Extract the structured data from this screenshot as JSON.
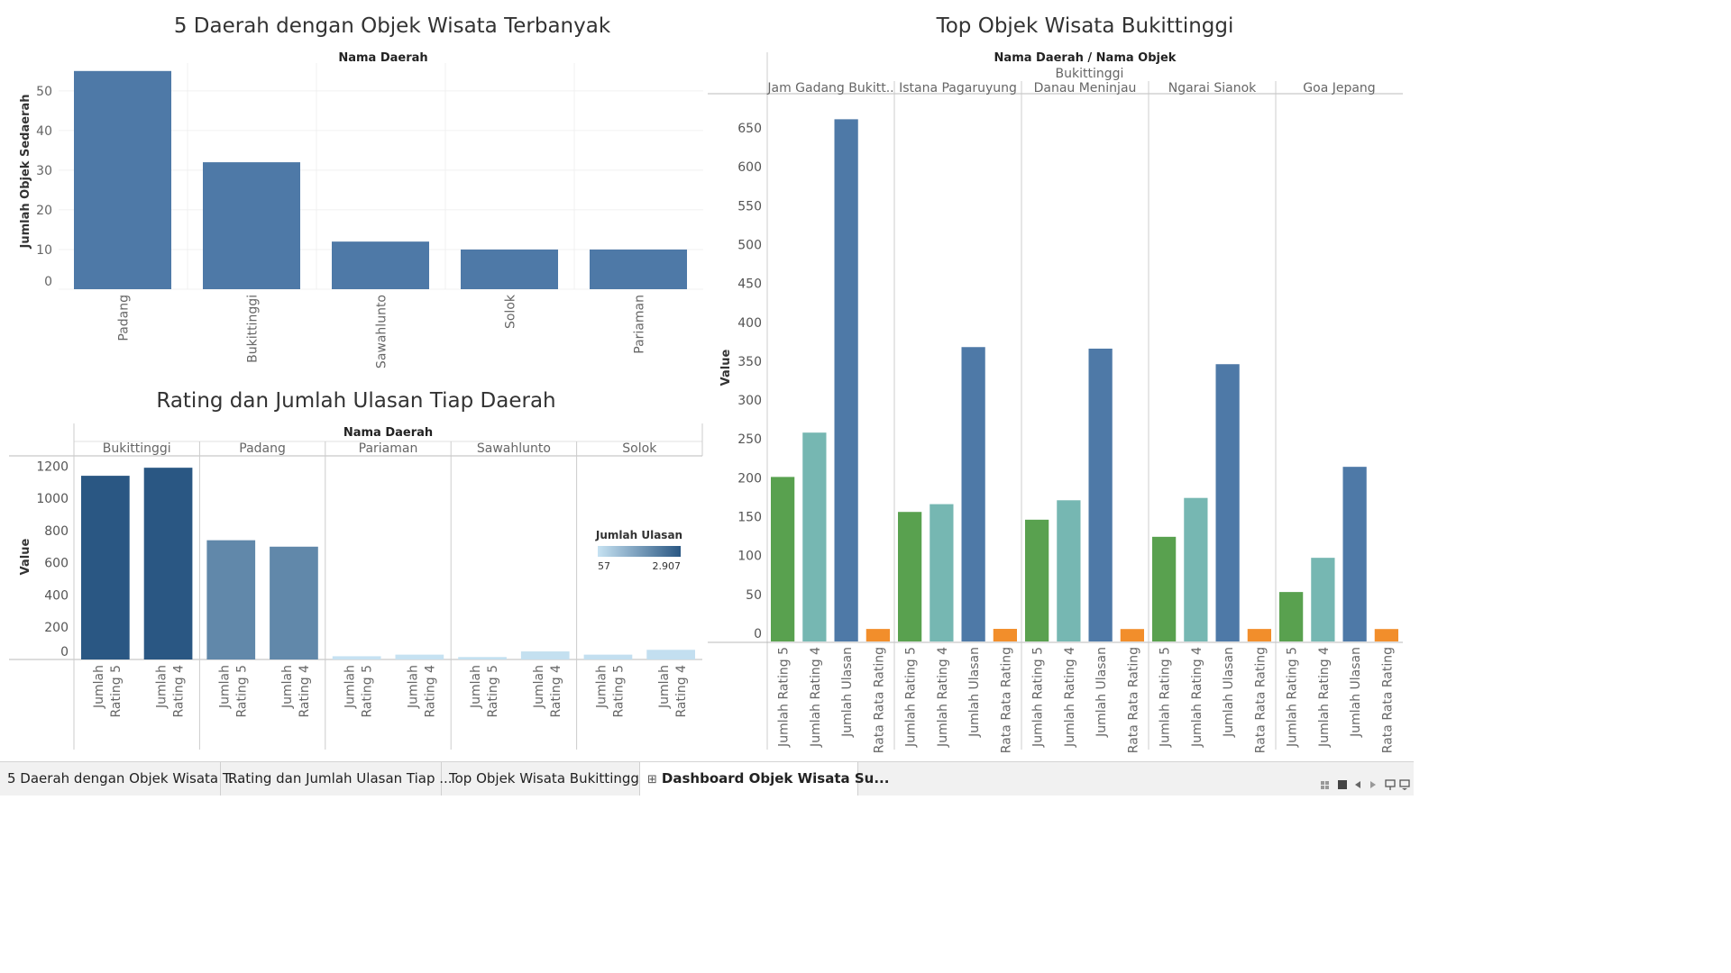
{
  "dashboard": {
    "charts": [
      {
        "type": "bar",
        "title": "5 Daerah dengan Objek Wisata Terbanyak",
        "header": "Nama Daerah",
        "ylabel": "Jumlah Objek Sedaerah",
        "categories": [
          "Padang",
          "Bukittinggi",
          "Sawahlunto",
          "Solok",
          "Pariaman"
        ],
        "values": [
          55,
          32,
          12,
          10,
          10
        ],
        "yticks": [
          "0",
          "10",
          "20",
          "30",
          "40",
          "50"
        ],
        "ylim": [
          0,
          57
        ],
        "color": "#4e79a7"
      },
      {
        "type": "bar",
        "title": "Rating dan Jumlah Ulasan Tiap Daerah",
        "header": "Nama Daerah",
        "ylabel": "Value",
        "groups": [
          "Bukittinggi",
          "Padang",
          "Pariaman",
          "Sawahlunto",
          "Solok"
        ],
        "measures": [
          "Jumlah Rating 5",
          "Jumlah Rating 4"
        ],
        "values": [
          [
            1140,
            1190
          ],
          [
            740,
            700
          ],
          [
            20,
            30
          ],
          [
            15,
            50
          ],
          [
            30,
            60
          ]
        ],
        "color_values": [
          [
            2907,
            2907
          ],
          [
            1900,
            1900
          ],
          [
            57,
            57
          ],
          [
            100,
            100
          ],
          [
            110,
            110
          ]
        ],
        "yticks": [
          "0",
          "200",
          "400",
          "600",
          "800",
          "1000",
          "1200"
        ],
        "ylim": [
          0,
          1230
        ],
        "legend": {
          "title": "Jumlah Ulasan",
          "min": "57",
          "max": "2.907",
          "colors": [
            "#c6e2f2",
            "#2a5783"
          ],
          "placement": "right"
        }
      },
      {
        "type": "bar",
        "title": "Top Objek Wisata Bukittinggi",
        "header": "Nama Daerah  /  Nama Objek",
        "region": "Bukittinggi",
        "ylabel": "Value",
        "groups": [
          "Jam Gadang Bukitt..",
          "Istana Pagaruyung",
          "Danau Meninjau",
          "Ngarai Sianok",
          "Goa Jepang"
        ],
        "measures": [
          "Jumlah Rating 5",
          "Jumlah Rating 4",
          "Jumlah Ulasan",
          "Rata Rata Rating"
        ],
        "values": [
          [
            200,
            257,
            660,
            4.5
          ],
          [
            155,
            165,
            367,
            4.6
          ],
          [
            145,
            170,
            365,
            4.4
          ],
          [
            123,
            173,
            345,
            4.5
          ],
          [
            52,
            96,
            213,
            4.4
          ]
        ],
        "yticks": [
          "0",
          "50",
          "100",
          "150",
          "200",
          "250",
          "300",
          "350",
          "400",
          "450",
          "500",
          "550",
          "600",
          "650"
        ],
        "ylim": [
          0,
          680
        ],
        "colors": [
          "#59a14f",
          "#76b7b2",
          "#4e79a7",
          "#f28e2b"
        ]
      }
    ]
  },
  "tabs": [
    {
      "label": "5 Daerah dengan Objek Wisata T..."
    },
    {
      "label": "Rating dan Jumlah Ulasan Tiap ..."
    },
    {
      "label": "Top Objek Wisata Bukittinggi"
    },
    {
      "label": "Dashboard Objek Wisata Su...",
      "icon": "⊞",
      "icon_name": "dashboard-grid-icon"
    }
  ],
  "nav_icons": [
    "grid-view-icon",
    "filmstrip-icon",
    "prev-icon",
    "next-icon",
    "present-icon"
  ]
}
